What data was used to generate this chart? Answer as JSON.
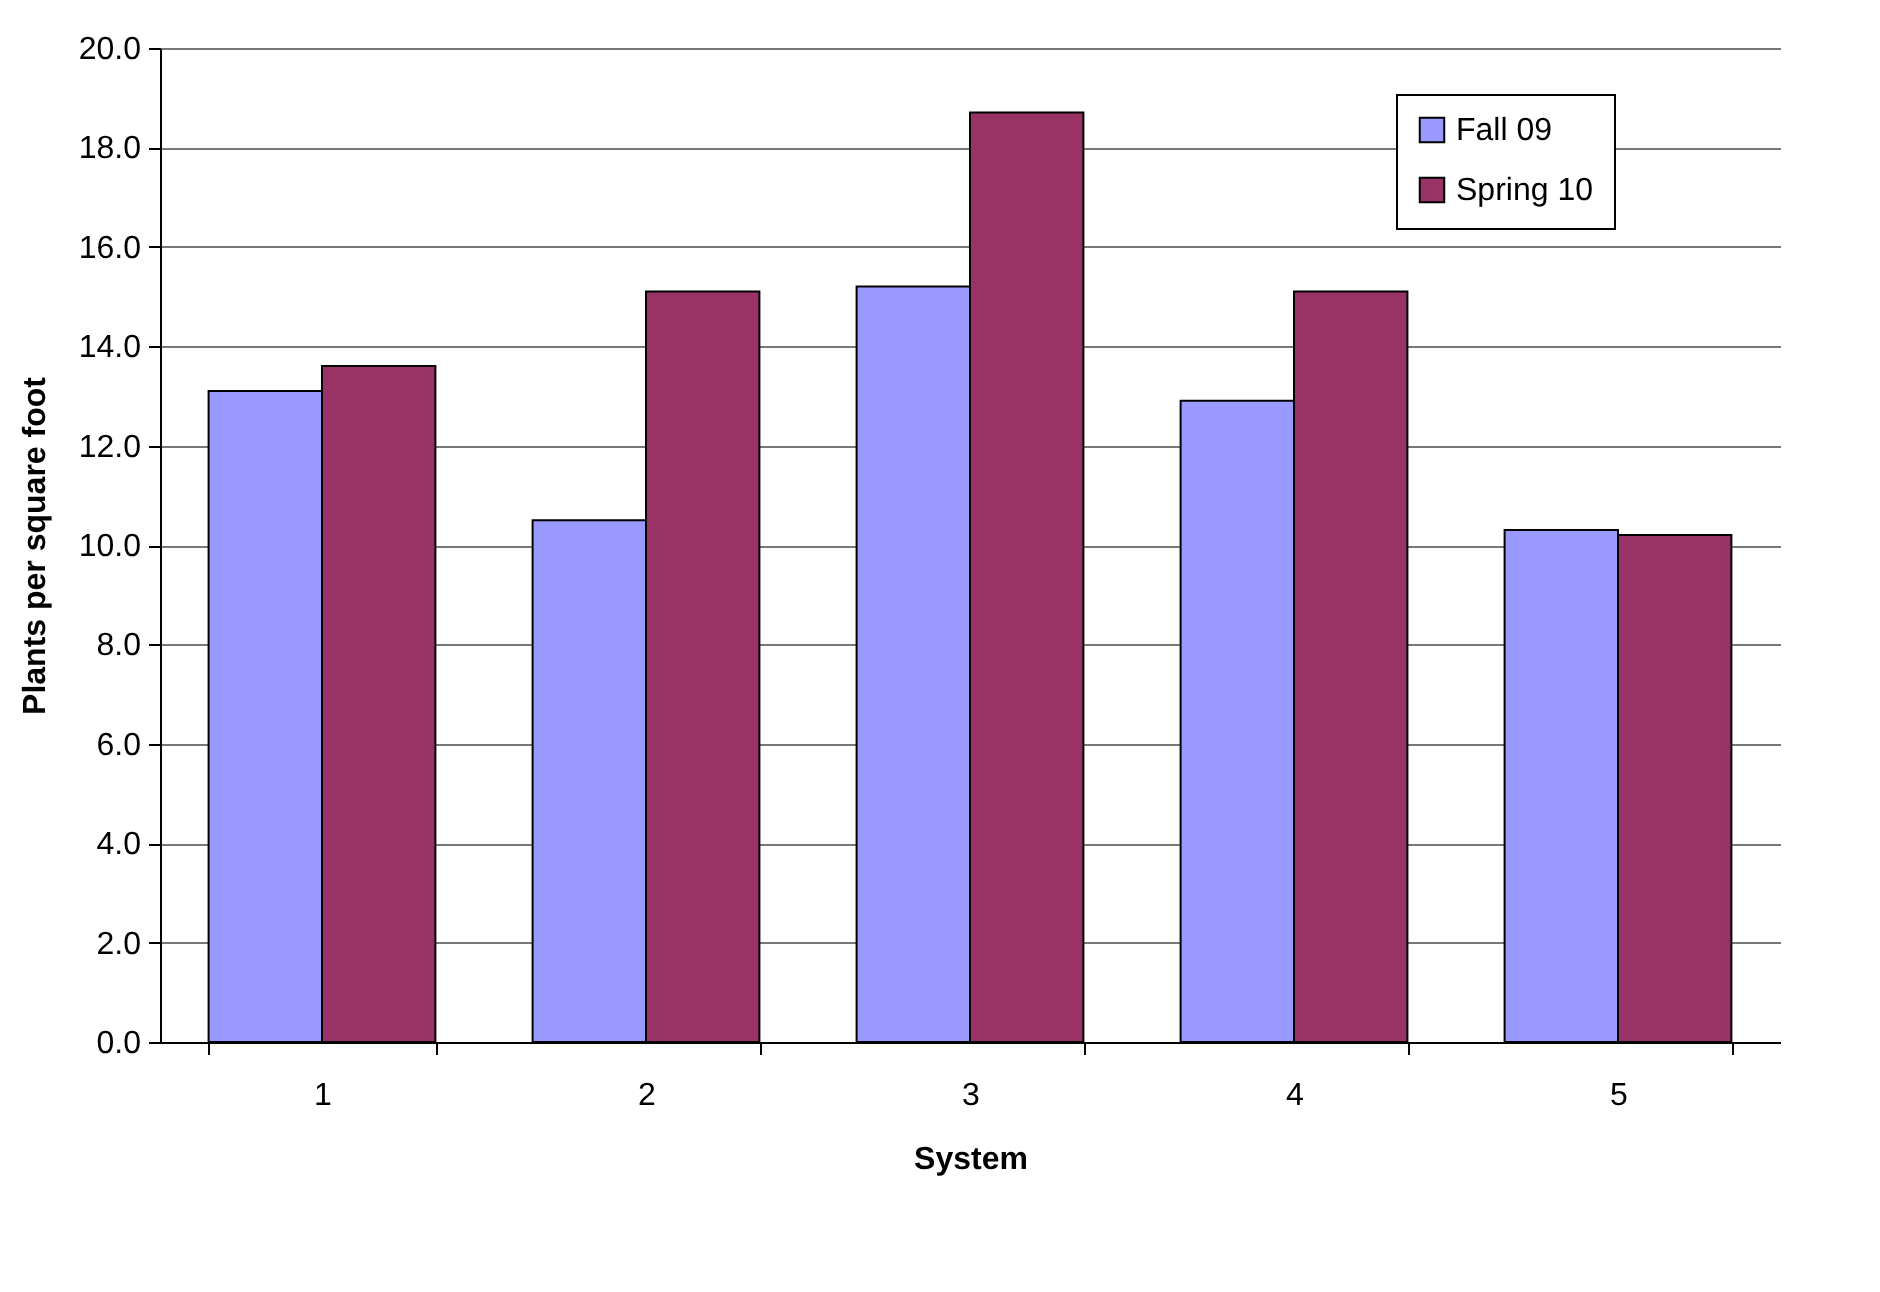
{
  "chart_data": {
    "type": "bar",
    "xlabel": "System",
    "ylabel": "Plants per square foot",
    "categories": [
      "1",
      "2",
      "3",
      "4",
      "5"
    ],
    "series": [
      {
        "name": "Fall 09",
        "color": "#9999ff",
        "values": [
          13.1,
          10.5,
          15.2,
          12.9,
          10.3
        ]
      },
      {
        "name": "Spring 10",
        "color": "#993366",
        "values": [
          13.6,
          15.1,
          18.7,
          15.1,
          10.2
        ]
      }
    ],
    "ylim": [
      0,
      20
    ],
    "yticks": [
      {
        "value": 0,
        "label": "0.0"
      },
      {
        "value": 2,
        "label": "2.0"
      },
      {
        "value": 4,
        "label": "4.0"
      },
      {
        "value": 6,
        "label": "6.0"
      },
      {
        "value": 8,
        "label": "8.0"
      },
      {
        "value": 10,
        "label": "10.0"
      },
      {
        "value": 12,
        "label": "12.0"
      },
      {
        "value": 14,
        "label": "14.0"
      },
      {
        "value": 16,
        "label": "16.0"
      },
      {
        "value": 18,
        "label": "18.0"
      },
      {
        "value": 20,
        "label": "20.0"
      }
    ],
    "grid": "y",
    "legend": "top right"
  }
}
